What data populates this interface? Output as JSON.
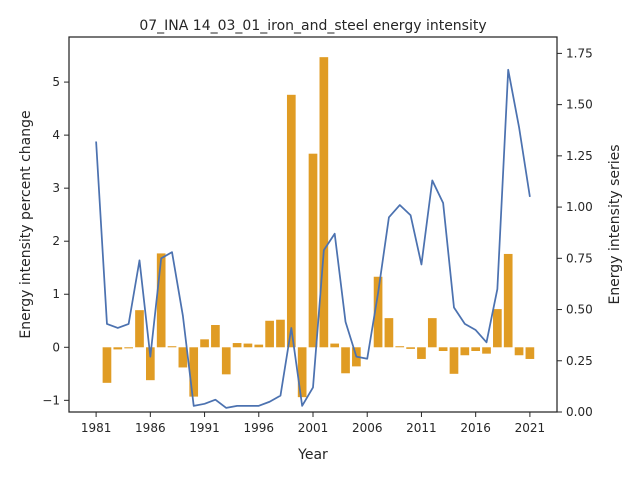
{
  "chart_data": {
    "type": "bar",
    "title": "07_INA 14_03_01_iron_and_steel energy intensity",
    "xlabel": "Year",
    "ylabel_left": "Energy intensity percent change",
    "ylabel_right": "Energy intensity series",
    "ylim_left": [
      -1.22,
      5.85
    ],
    "ylim_right": [
      0.0,
      1.83
    ],
    "xlim": [
      1978.5,
      2023.5
    ],
    "x_ticks": [
      1981,
      1986,
      1991,
      1996,
      2001,
      2006,
      2011,
      2016,
      2021
    ],
    "y_ticks_left": [
      -1,
      0,
      1,
      2,
      3,
      4,
      5
    ],
    "y_ticks_right": [
      0.0,
      0.25,
      0.5,
      0.75,
      1.0,
      1.25,
      1.5,
      1.75
    ],
    "grid": false,
    "colors": {
      "bar": "#e09c24",
      "line": "#4c72b0",
      "axis": "#262626"
    },
    "series": [
      {
        "name": "Energy intensity percent change",
        "type": "bar",
        "axis": "left",
        "x": [
          1981,
          1982,
          1983,
          1984,
          1985,
          1986,
          1987,
          1988,
          1989,
          1990,
          1991,
          1992,
          1993,
          1994,
          1995,
          1996,
          1997,
          1998,
          1999,
          2000,
          2001,
          2002,
          2003,
          2004,
          2005,
          2006,
          2007,
          2008,
          2009,
          2010,
          2011,
          2012,
          2013,
          2014,
          2015,
          2016,
          2017,
          2018,
          2019,
          2020,
          2021
        ],
        "values": [
          0.0,
          -0.67,
          -0.04,
          -0.02,
          0.7,
          -0.62,
          1.77,
          0.02,
          -0.38,
          -0.93,
          0.15,
          0.42,
          -0.51,
          0.08,
          0.07,
          0.05,
          0.5,
          0.52,
          4.76,
          -0.94,
          3.65,
          5.47,
          0.07,
          -0.49,
          -0.36,
          0.0,
          1.33,
          0.55,
          0.02,
          -0.03,
          -0.22,
          0.55,
          -0.07,
          -0.5,
          -0.15,
          -0.07,
          -0.12,
          0.72,
          1.76,
          -0.15,
          -0.22
        ]
      },
      {
        "name": "Energy intensity series",
        "type": "line",
        "axis": "right",
        "x": [
          1981,
          1982,
          1983,
          1984,
          1985,
          1986,
          1987,
          1988,
          1989,
          1990,
          1991,
          1992,
          1993,
          1994,
          1995,
          1996,
          1997,
          1998,
          1999,
          2000,
          2001,
          2002,
          2003,
          2004,
          2005,
          2006,
          2007,
          2008,
          2009,
          2010,
          2011,
          2012,
          2013,
          2014,
          2015,
          2016,
          2017,
          2018,
          2019,
          2020,
          2021
        ],
        "values": [
          1.32,
          0.43,
          0.41,
          0.43,
          0.74,
          0.27,
          0.75,
          0.78,
          0.47,
          0.03,
          0.04,
          0.06,
          0.02,
          0.03,
          0.03,
          0.03,
          0.05,
          0.08,
          0.41,
          0.03,
          0.12,
          0.79,
          0.87,
          0.44,
          0.27,
          0.26,
          0.58,
          0.95,
          1.01,
          0.96,
          0.72,
          1.13,
          1.02,
          0.51,
          0.43,
          0.4,
          0.34,
          0.6,
          1.67,
          1.39,
          1.05
        ]
      }
    ]
  }
}
